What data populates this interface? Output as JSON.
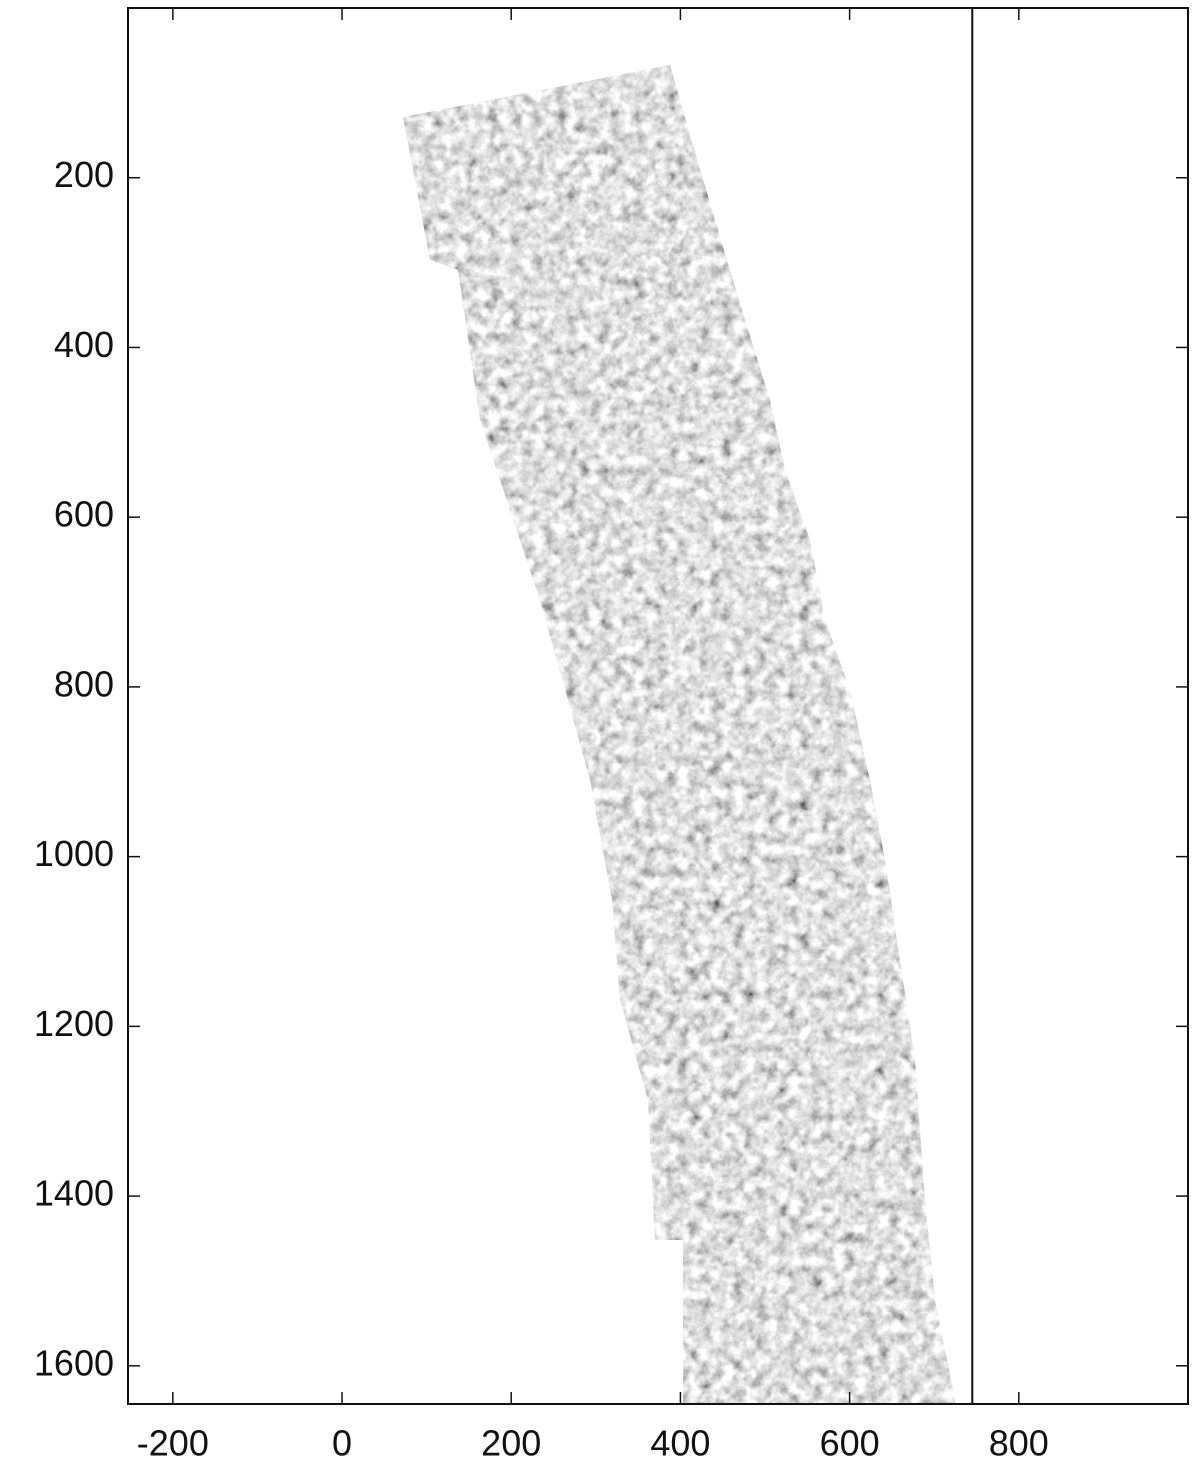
{
  "chart_data": {
    "type": "image",
    "xlim": [
      -253,
      1000
    ],
    "ylim": [
      0,
      1645
    ],
    "y_reversed": true,
    "xticks": [
      -200,
      0,
      200,
      400,
      600,
      800
    ],
    "yticks": [
      200,
      400,
      600,
      800,
      1000,
      1200,
      1400,
      1600
    ],
    "vline": 745
  }
}
